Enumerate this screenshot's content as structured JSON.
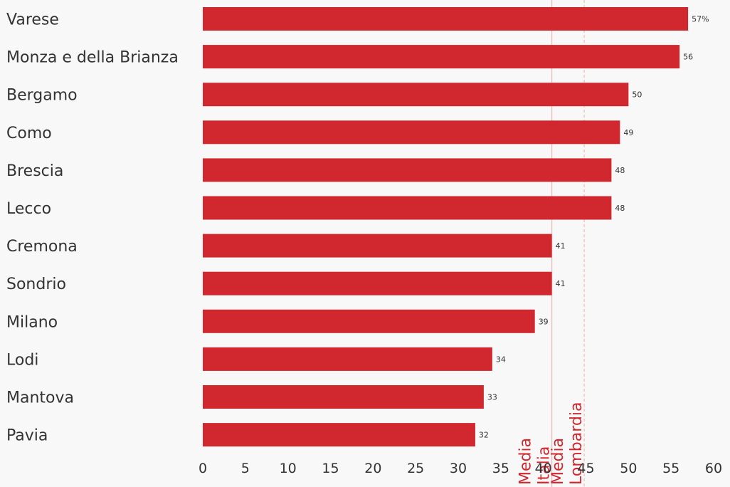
{
  "chart_data": {
    "type": "bar",
    "orientation": "horizontal",
    "categories": [
      "Varese",
      "Monza e della Brianza",
      "Bergamo",
      "Como",
      "Brescia",
      "Lecco",
      "Cremona",
      "Sondrio",
      "Milano",
      "Lodi",
      "Mantova",
      "Pavia"
    ],
    "values": [
      57,
      56,
      50,
      49,
      48,
      48,
      41,
      41,
      39,
      34,
      33,
      32
    ],
    "value_labels": [
      "57%",
      "56",
      "50",
      "49",
      "48",
      "48",
      "41",
      "41",
      "39",
      "34",
      "33",
      "32"
    ],
    "xlim": [
      0,
      60
    ],
    "xticks": [
      0,
      5,
      10,
      15,
      20,
      25,
      30,
      35,
      40,
      45,
      50,
      55,
      60
    ],
    "grid": false,
    "bar_color": "#d0282e",
    "reference_lines": [
      {
        "lines": [
          "Media",
          "Italia"
        ],
        "value": 41,
        "style": "solid",
        "color": "#f3b8ba"
      },
      {
        "lines": [
          "Media",
          "Lombardia"
        ],
        "value": 44.8,
        "style": "dashed",
        "color": "#f3b8ba"
      }
    ],
    "reference_label_color": "#d0282e",
    "background": "#f8f8f8"
  }
}
